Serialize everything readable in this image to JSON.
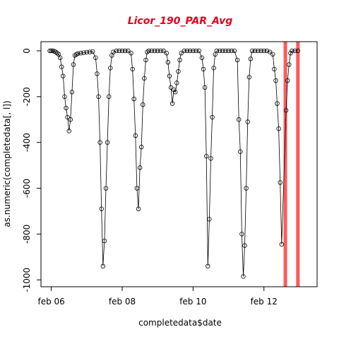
{
  "chart_data": {
    "type": "scatter",
    "title": "Licor_190_PAR_Avg",
    "xlabel": "completedata$date",
    "ylabel": "as.numeric(completedata[, l])",
    "xlim": [
      "2016-02-05 17:00",
      "2016-02-13 12:00"
    ],
    "ylim": [
      -1030,
      40
    ],
    "x_ticks": [
      {
        "label": "feb 06",
        "value": "2016-02-06 00:00"
      },
      {
        "label": "feb 08",
        "value": "2016-02-08 00:00"
      },
      {
        "label": "feb 10",
        "value": "2016-02-10 00:00"
      },
      {
        "label": "feb 12",
        "value": "2016-02-12 00:00"
      }
    ],
    "y_ticks": [
      0,
      -200,
      -400,
      -600,
      -800,
      -1000
    ],
    "grid": false,
    "line_connected": true,
    "marker": "open-circle",
    "colors": {
      "title": "#e8001c",
      "vertical_lines": "#ff5a5a",
      "points": "#000000"
    },
    "vertical_lines": [
      "2016-02-12 14:30",
      "2016-02-12 23:00"
    ],
    "series": [
      {
        "points": [
          [
            "2016-02-05 23:00",
            0
          ],
          [
            "2016-02-06 00:00",
            0
          ],
          [
            "2016-02-06 01:00",
            0
          ],
          [
            "2016-02-06 02:00",
            -2
          ],
          [
            "2016-02-06 03:00",
            -5
          ],
          [
            "2016-02-06 04:00",
            -10
          ],
          [
            "2016-02-06 05:00",
            -15
          ],
          [
            "2016-02-06 06:00",
            -30
          ],
          [
            "2016-02-06 07:00",
            -70
          ],
          [
            "2016-02-06 08:00",
            -110
          ],
          [
            "2016-02-06 09:00",
            -200
          ],
          [
            "2016-02-06 10:00",
            -250
          ],
          [
            "2016-02-06 11:00",
            -290
          ],
          [
            "2016-02-06 12:00",
            -350
          ],
          [
            "2016-02-06 13:00",
            -300
          ],
          [
            "2016-02-06 14:00",
            -180
          ],
          [
            "2016-02-06 15:00",
            -60
          ],
          [
            "2016-02-06 16:00",
            -20
          ],
          [
            "2016-02-06 17:00",
            -15
          ],
          [
            "2016-02-06 18:00",
            -12
          ],
          [
            "2016-02-06 20:00",
            -10
          ],
          [
            "2016-02-06 22:00",
            -8
          ],
          [
            "2016-02-07 00:00",
            -6
          ],
          [
            "2016-02-07 02:00",
            -5
          ],
          [
            "2016-02-07 04:00",
            -3
          ],
          [
            "2016-02-07 06:00",
            -30
          ],
          [
            "2016-02-07 07:00",
            -100
          ],
          [
            "2016-02-07 08:00",
            -200
          ],
          [
            "2016-02-07 09:00",
            -400
          ],
          [
            "2016-02-07 10:00",
            -690
          ],
          [
            "2016-02-07 11:00",
            -940
          ],
          [
            "2016-02-07 12:00",
            -830
          ],
          [
            "2016-02-07 13:00",
            -600
          ],
          [
            "2016-02-07 14:00",
            -400
          ],
          [
            "2016-02-07 15:00",
            -200
          ],
          [
            "2016-02-07 16:00",
            -75
          ],
          [
            "2016-02-07 17:00",
            -20
          ],
          [
            "2016-02-07 18:00",
            -5
          ],
          [
            "2016-02-07 20:00",
            0
          ],
          [
            "2016-02-07 22:00",
            0
          ],
          [
            "2016-02-08 00:00",
            0
          ],
          [
            "2016-02-08 02:00",
            0
          ],
          [
            "2016-02-08 04:00",
            0
          ],
          [
            "2016-02-08 06:00",
            -10
          ],
          [
            "2016-02-08 07:00",
            -80
          ],
          [
            "2016-02-08 08:00",
            -210
          ],
          [
            "2016-02-08 09:00",
            -370
          ],
          [
            "2016-02-08 10:00",
            -600
          ],
          [
            "2016-02-08 11:00",
            -690
          ],
          [
            "2016-02-08 12:00",
            -510
          ],
          [
            "2016-02-08 13:00",
            -420
          ],
          [
            "2016-02-08 14:00",
            -235
          ],
          [
            "2016-02-08 15:00",
            -120
          ],
          [
            "2016-02-08 16:00",
            -40
          ],
          [
            "2016-02-08 17:00",
            -5
          ],
          [
            "2016-02-08 18:00",
            0
          ],
          [
            "2016-02-08 20:00",
            0
          ],
          [
            "2016-02-08 22:00",
            0
          ],
          [
            "2016-02-09 00:00",
            0
          ],
          [
            "2016-02-09 02:00",
            0
          ],
          [
            "2016-02-09 04:00",
            0
          ],
          [
            "2016-02-09 06:00",
            -10
          ],
          [
            "2016-02-09 07:00",
            -50
          ],
          [
            "2016-02-09 08:00",
            -110
          ],
          [
            "2016-02-09 09:00",
            -160
          ],
          [
            "2016-02-09 10:00",
            -230
          ],
          [
            "2016-02-09 11:00",
            -170
          ],
          [
            "2016-02-09 12:00",
            -180
          ],
          [
            "2016-02-09 13:00",
            -140
          ],
          [
            "2016-02-09 14:00",
            -90
          ],
          [
            "2016-02-09 15:00",
            -40
          ],
          [
            "2016-02-09 16:00",
            -10
          ],
          [
            "2016-02-09 18:00",
            0
          ],
          [
            "2016-02-09 20:00",
            0
          ],
          [
            "2016-02-09 22:00",
            0
          ],
          [
            "2016-02-10 00:00",
            0
          ],
          [
            "2016-02-10 02:00",
            0
          ],
          [
            "2016-02-10 04:00",
            0
          ],
          [
            "2016-02-10 06:00",
            -30
          ],
          [
            "2016-02-10 07:00",
            -80
          ],
          [
            "2016-02-10 08:00",
            -160
          ],
          [
            "2016-02-10 09:00",
            -460
          ],
          [
            "2016-02-10 10:00",
            -940
          ],
          [
            "2016-02-10 11:00",
            -735
          ],
          [
            "2016-02-10 12:00",
            -470
          ],
          [
            "2016-02-10 13:00",
            -290
          ],
          [
            "2016-02-10 14:00",
            -75
          ],
          [
            "2016-02-10 15:00",
            -15
          ],
          [
            "2016-02-10 16:00",
            0
          ],
          [
            "2016-02-10 18:00",
            0
          ],
          [
            "2016-02-10 20:00",
            0
          ],
          [
            "2016-02-10 22:00",
            0
          ],
          [
            "2016-02-11 00:00",
            0
          ],
          [
            "2016-02-11 02:00",
            0
          ],
          [
            "2016-02-11 04:00",
            0
          ],
          [
            "2016-02-11 06:00",
            -40
          ],
          [
            "2016-02-11 07:00",
            -300
          ],
          [
            "2016-02-11 08:00",
            -440
          ],
          [
            "2016-02-11 09:00",
            -800
          ],
          [
            "2016-02-11 10:00",
            -985
          ],
          [
            "2016-02-11 11:00",
            -850
          ],
          [
            "2016-02-11 12:00",
            -600
          ],
          [
            "2016-02-11 13:00",
            -310
          ],
          [
            "2016-02-11 14:00",
            -115
          ],
          [
            "2016-02-11 15:00",
            -35
          ],
          [
            "2016-02-11 16:00",
            0
          ],
          [
            "2016-02-11 18:00",
            0
          ],
          [
            "2016-02-11 20:00",
            0
          ],
          [
            "2016-02-11 22:00",
            0
          ],
          [
            "2016-02-12 00:00",
            0
          ],
          [
            "2016-02-12 02:00",
            0
          ],
          [
            "2016-02-12 04:00",
            -5
          ],
          [
            "2016-02-12 06:00",
            -15
          ],
          [
            "2016-02-12 07:00",
            -80
          ],
          [
            "2016-02-12 08:00",
            -130
          ],
          [
            "2016-02-12 09:00",
            -230
          ],
          [
            "2016-02-12 10:00",
            -340
          ],
          [
            "2016-02-12 11:00",
            -575
          ],
          [
            "2016-02-12 12:00",
            -845
          ],
          [
            "2016-02-12 15:00",
            -260
          ],
          [
            "2016-02-12 16:00",
            -130
          ],
          [
            "2016-02-12 17:00",
            -60
          ],
          [
            "2016-02-12 18:00",
            -10
          ],
          [
            "2016-02-12 19:00",
            0
          ],
          [
            "2016-02-12 21:00",
            0
          ],
          [
            "2016-02-12 23:00",
            0
          ]
        ]
      }
    ]
  }
}
